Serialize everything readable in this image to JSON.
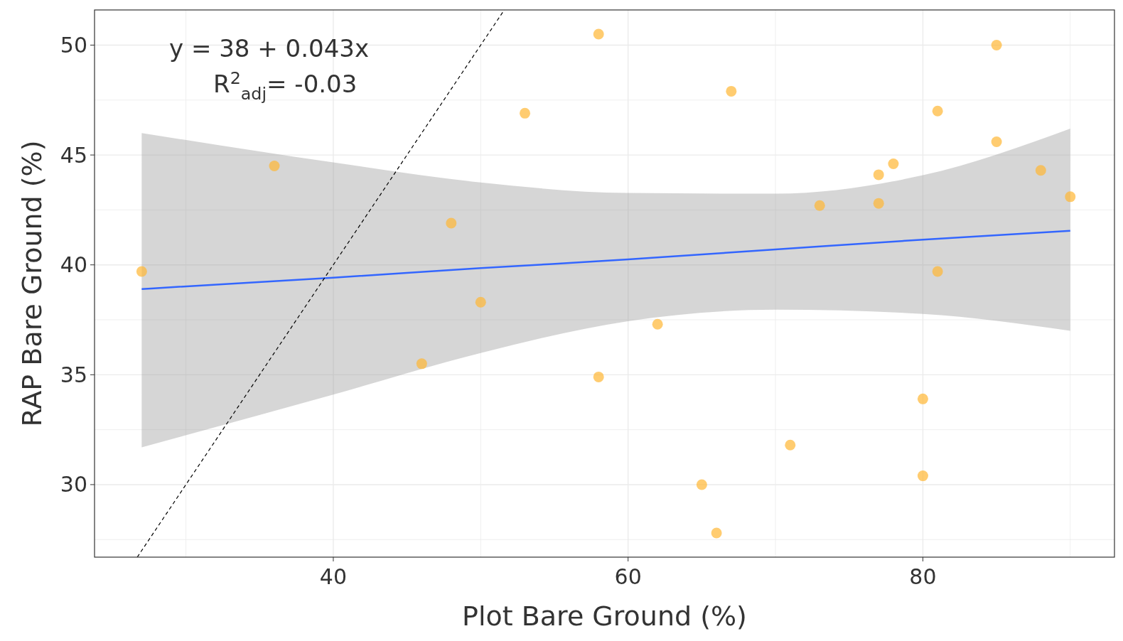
{
  "chart_data": {
    "type": "scatter",
    "xlabel": "Plot Bare Ground (%)",
    "ylabel": "RAP Bare Ground (%)",
    "xlim": [
      23.8,
      93.0
    ],
    "ylim": [
      26.7,
      51.6
    ],
    "xticks": [
      {
        "value": 30,
        "label": null
      },
      40,
      {
        "value": 50,
        "label": null
      },
      60,
      {
        "value": 70,
        "label": null
      },
      80,
      {
        "value": 90,
        "label": null
      }
    ],
    "yticks": [
      {
        "value": 27.5,
        "label": null
      },
      30,
      {
        "value": 32.5,
        "label": null
      },
      35,
      {
        "value": 37.5,
        "label": null
      },
      40,
      {
        "value": 42.5,
        "label": null
      },
      45,
      {
        "value": 47.5,
        "label": null
      },
      50
    ],
    "grid": true,
    "annotations": [
      "y = 38 + 0.043x",
      "R$^{2}$$_{adj}$= -0.03"
    ],
    "series": [
      {
        "type": "line",
        "color": "#3366ff",
        "x": [
          27,
          40,
          50,
          60,
          70,
          80,
          90
        ],
        "values": [
          38.9,
          39.42,
          39.85,
          40.25,
          40.7,
          41.15,
          41.55
        ],
        "lower": [
          31.7,
          34.1,
          35.99,
          37.44,
          37.96,
          37.77,
          37.0
        ],
        "upper": [
          46.0,
          44.66,
          43.75,
          43.27,
          43.24,
          44.08,
          46.2
        ]
      },
      {
        "type": "line",
        "color": "#000000",
        "line_style": "dashed",
        "x": [
          26.7,
          51.6
        ],
        "values": [
          26.7,
          51.6
        ]
      },
      {
        "marker": "circle",
        "color": "#ffb733",
        "x": [
          27,
          36,
          46,
          48,
          50,
          53,
          58,
          58,
          62,
          65,
          66,
          67,
          71,
          73,
          77,
          77,
          78,
          80,
          80,
          81,
          81,
          85,
          85,
          88,
          90
        ],
        "values": [
          39.7,
          44.5,
          35.5,
          41.9,
          38.3,
          46.9,
          50.5,
          34.9,
          37.3,
          30.0,
          27.8,
          47.9,
          31.8,
          42.7,
          44.1,
          42.8,
          44.6,
          33.9,
          30.4,
          47.0,
          39.7,
          50.0,
          45.6,
          44.3,
          43.1
        ]
      }
    ]
  }
}
